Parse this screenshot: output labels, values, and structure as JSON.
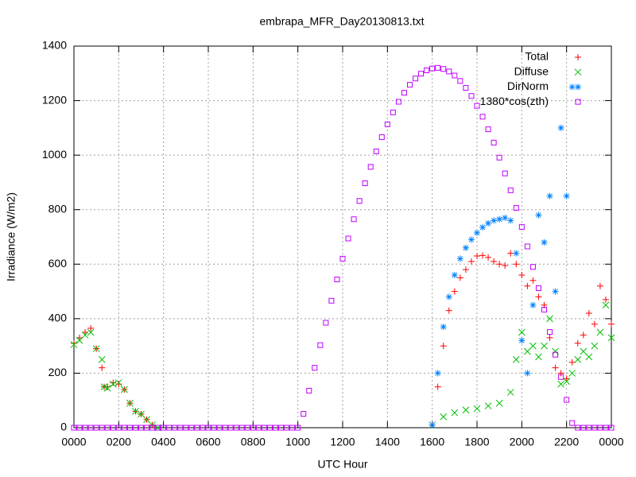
{
  "chart_data": {
    "type": "scatter",
    "title": "embrapa_MFR_Day20130813.txt",
    "x_label": "UTC Hour",
    "y_label": "Irradiance (W/m2)",
    "xlim": [
      0,
      24
    ],
    "ylim": [
      0,
      1400
    ],
    "xticks": [
      {
        "value": 0,
        "label": "0000"
      },
      {
        "value": 2,
        "label": "0200"
      },
      {
        "value": 4,
        "label": "0400"
      },
      {
        "value": 6,
        "label": "0600"
      },
      {
        "value": 8,
        "label": "0800"
      },
      {
        "value": 10,
        "label": "1000"
      },
      {
        "value": 12,
        "label": "1200"
      },
      {
        "value": 14,
        "label": "1400"
      },
      {
        "value": 16,
        "label": "1600"
      },
      {
        "value": 18,
        "label": "1800"
      },
      {
        "value": 20,
        "label": "2000"
      },
      {
        "value": 22,
        "label": "2200"
      },
      {
        "value": 24,
        "label": "0000"
      }
    ],
    "yticks": [
      0,
      200,
      400,
      600,
      800,
      1000,
      1200,
      1400
    ],
    "grid": true,
    "legend": "top-right",
    "series": [
      {
        "name": "Total",
        "color": "#ff0000",
        "marker": "plus",
        "x": [
          0,
          0.25,
          0.5,
          0.75,
          1,
          1.25,
          1.35,
          1.5,
          1.75,
          2,
          2.25,
          2.5,
          2.75,
          3,
          3.25,
          3.5,
          16,
          16.25,
          16.5,
          16.75,
          17,
          17.25,
          17.5,
          17.75,
          18,
          18.25,
          18.5,
          18.75,
          19,
          19.25,
          19.5,
          19.75,
          20,
          20.25,
          20.5,
          20.75,
          21,
          21.25,
          21.5,
          21.75,
          22,
          22.25,
          22.5,
          22.75,
          23,
          23.25,
          23.5,
          23.75,
          24
        ],
        "values": [
          310,
          330,
          350,
          365,
          290,
          220,
          150,
          150,
          165,
          160,
          140,
          90,
          60,
          50,
          30,
          10,
          10,
          150,
          300,
          430,
          500,
          550,
          580,
          610,
          630,
          632,
          625,
          610,
          600,
          595,
          640,
          600,
          560,
          520,
          540,
          480,
          450,
          330,
          220,
          200,
          180,
          240,
          310,
          340,
          420,
          380,
          520,
          470,
          380
        ]
      },
      {
        "name": "Diffuse",
        "color": "#00c000",
        "marker": "cross",
        "x": [
          0,
          0.25,
          0.5,
          0.75,
          1,
          1.25,
          1.35,
          1.5,
          1.75,
          2,
          2.25,
          2.5,
          2.75,
          3,
          3.25,
          3.5,
          3.75,
          16,
          16.5,
          17,
          17.5,
          18,
          18.5,
          19,
          19.5,
          19.75,
          20,
          20.25,
          20.5,
          20.75,
          21,
          21.25,
          21.5,
          21.75,
          22,
          22.25,
          22.5,
          22.75,
          23,
          23.25,
          23.5,
          23.75,
          24
        ],
        "values": [
          305,
          320,
          340,
          350,
          290,
          250,
          150,
          145,
          160,
          165,
          140,
          90,
          60,
          50,
          30,
          10,
          0,
          10,
          40,
          55,
          65,
          70,
          80,
          90,
          130,
          250,
          350,
          280,
          300,
          260,
          300,
          400,
          280,
          160,
          170,
          200,
          250,
          280,
          260,
          300,
          350,
          450,
          330
        ]
      },
      {
        "name": "DirNorm",
        "color": "#0080ff",
        "marker": "star",
        "x": [
          16,
          16.25,
          16.5,
          16.75,
          17,
          17.25,
          17.5,
          17.75,
          18,
          18.25,
          18.5,
          18.75,
          19,
          19.25,
          19.5,
          19.75,
          20,
          20.25,
          20.5,
          20.75,
          21,
          21.25,
          21.5,
          21.75,
          22,
          22.25
        ],
        "values": [
          10,
          200,
          370,
          480,
          560,
          620,
          660,
          690,
          715,
          735,
          750,
          760,
          765,
          770,
          760,
          640,
          320,
          200,
          450,
          780,
          680,
          850,
          500,
          1100,
          850,
          1250
        ]
      },
      {
        "name": "1380*cos(zth)",
        "color": "#c000ff",
        "marker": "square",
        "x": [
          0,
          0.25,
          0.5,
          0.75,
          1,
          1.25,
          1.5,
          1.75,
          2,
          2.25,
          2.5,
          2.75,
          3,
          3.25,
          3.5,
          3.75,
          4,
          4.25,
          4.5,
          4.75,
          5,
          5.25,
          5.5,
          5.75,
          6,
          6.25,
          6.5,
          6.75,
          7,
          7.25,
          7.5,
          7.75,
          8,
          8.25,
          8.5,
          8.75,
          9,
          9.25,
          9.5,
          9.75,
          10,
          10.25,
          10.5,
          10.75,
          11,
          11.25,
          11.5,
          11.75,
          12,
          12.25,
          12.5,
          12.75,
          13,
          13.25,
          13.5,
          13.75,
          14,
          14.25,
          14.5,
          14.75,
          15,
          15.25,
          15.5,
          15.75,
          16,
          16.25,
          16.5,
          16.75,
          17,
          17.25,
          17.5,
          17.75,
          18,
          18.25,
          18.5,
          18.75,
          19,
          19.25,
          19.5,
          19.75,
          20,
          20.25,
          20.5,
          20.75,
          21,
          21.25,
          21.5,
          21.75,
          22,
          22.25,
          22.5,
          22.75,
          23,
          23.25,
          23.5,
          23.75,
          24
        ],
        "values": [
          0,
          0,
          0,
          0,
          0,
          0,
          0,
          0,
          0,
          0,
          0,
          0,
          0,
          0,
          0,
          0,
          0,
          0,
          0,
          0,
          0,
          0,
          0,
          0,
          0,
          0,
          0,
          0,
          0,
          0,
          0,
          0,
          0,
          0,
          0,
          0,
          0,
          0,
          0,
          0,
          0,
          51,
          136,
          220,
          303,
          385,
          466,
          544,
          620,
          694,
          765,
          832,
          897,
          957,
          1014,
          1066,
          1113,
          1157,
          1196,
          1229,
          1258,
          1281,
          1299,
          1311,
          1318,
          1320,
          1316,
          1307,
          1292,
          1272,
          1247,
          1217,
          1181,
          1141,
          1095,
          1046,
          991,
          933,
          871,
          806,
          737,
          665,
          590,
          512,
          433,
          351,
          268,
          186,
          102,
          17,
          0,
          0,
          0,
          0,
          0,
          0,
          0
        ]
      }
    ]
  }
}
